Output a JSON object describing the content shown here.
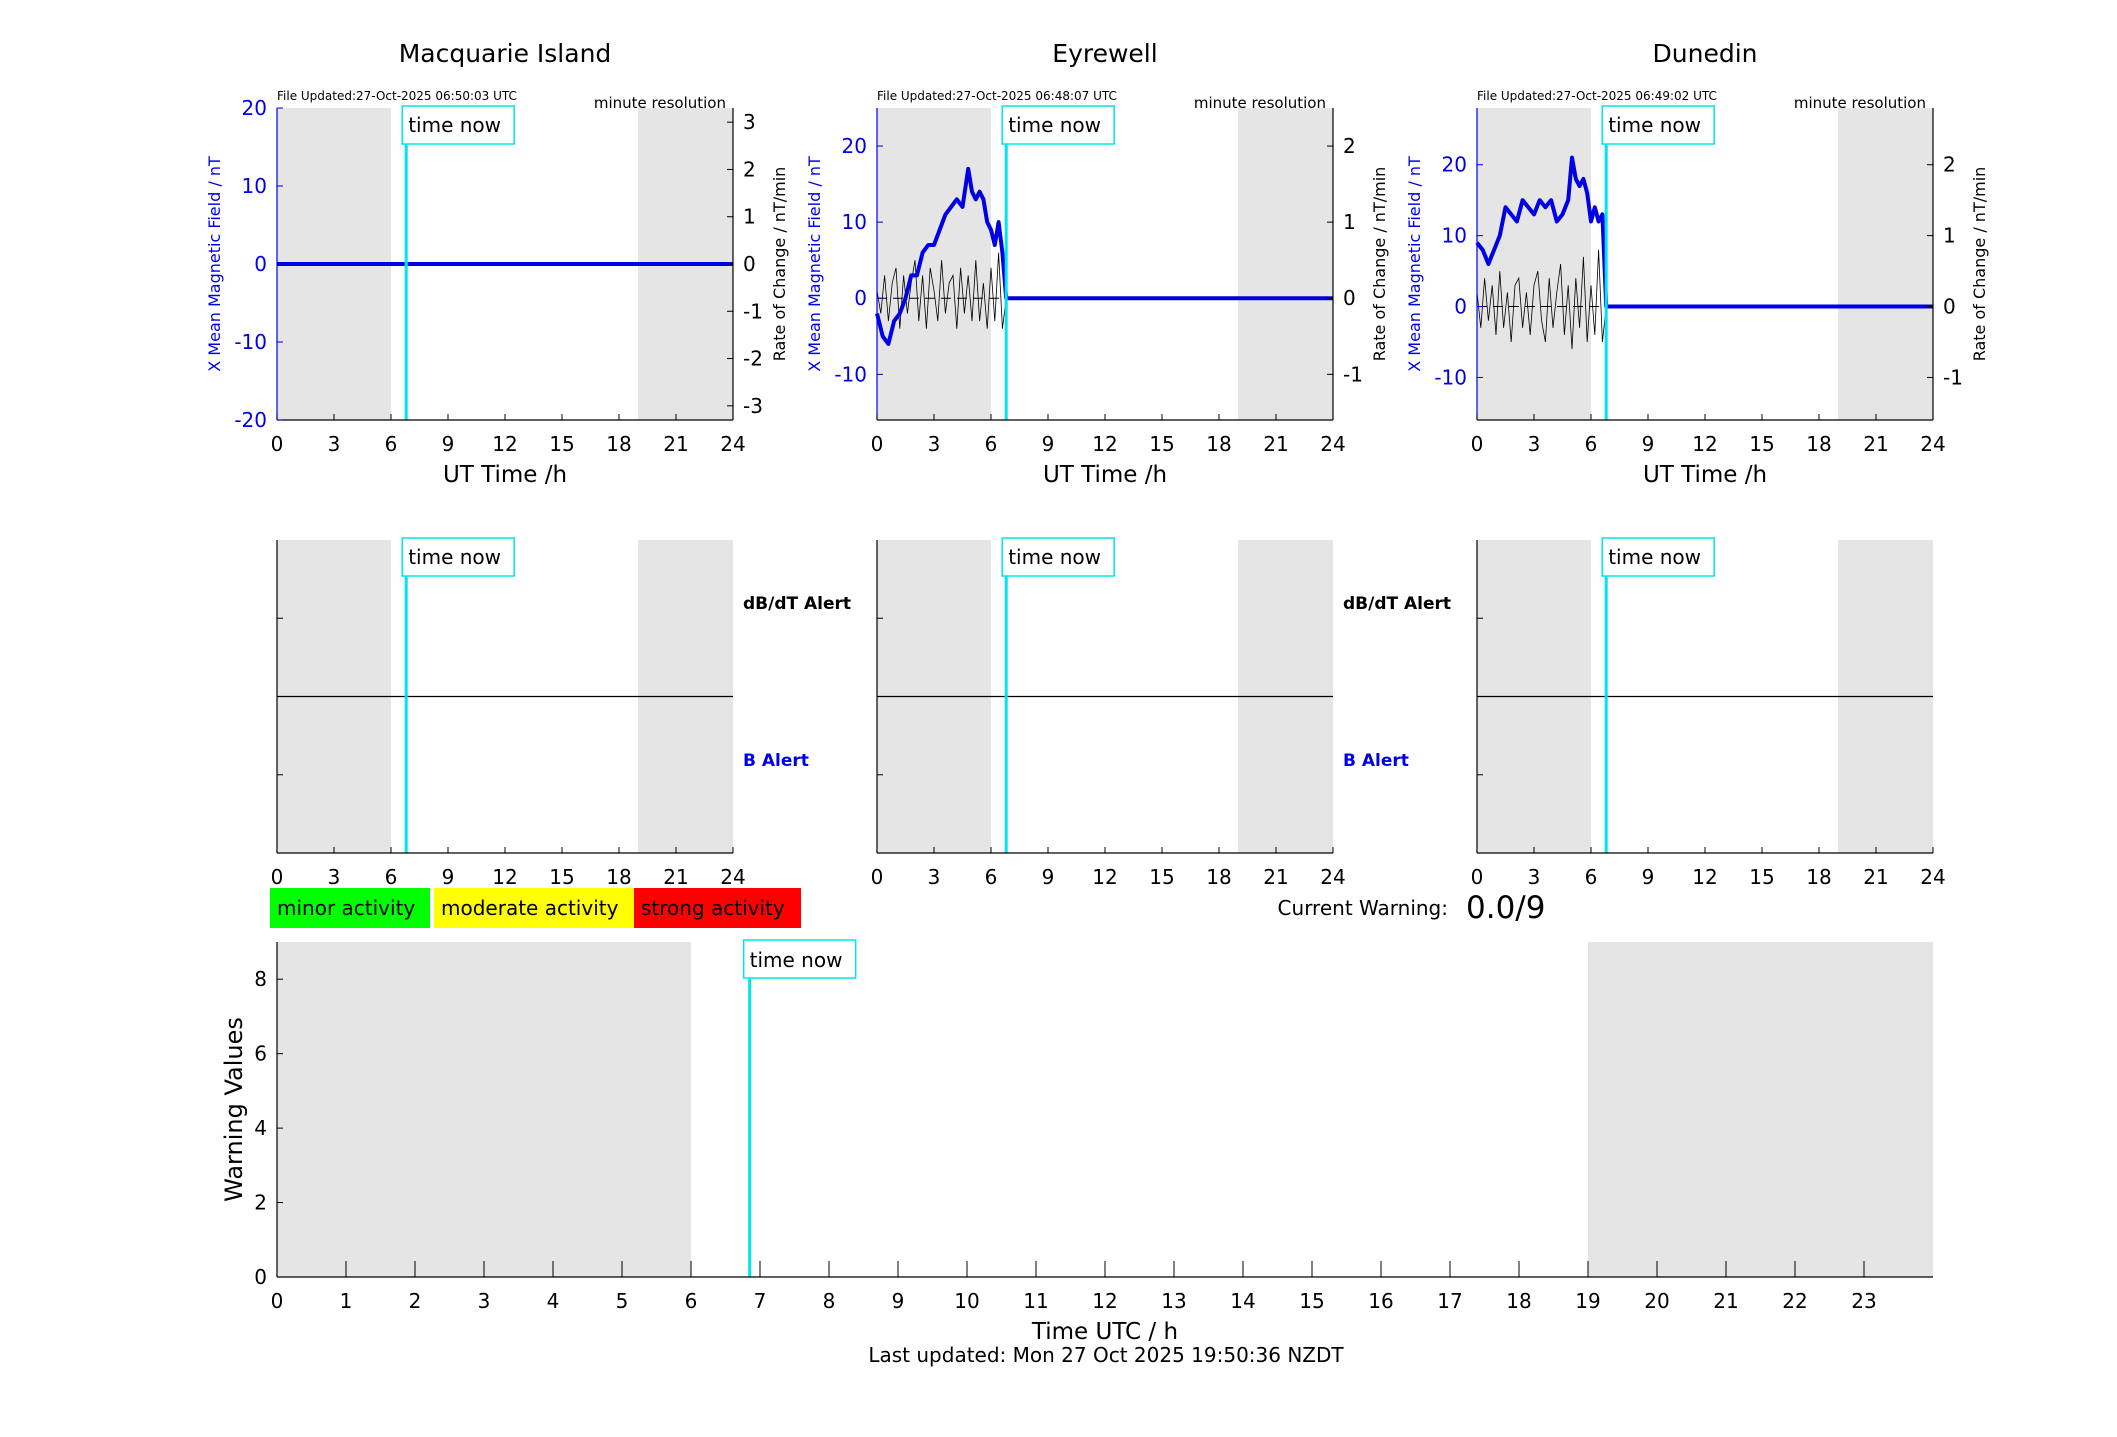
{
  "colors": {
    "mag_field": "#0000e6",
    "rate_of_change": "#000000",
    "night_shade": "#e5e5e5",
    "time_now": "#00e5ee",
    "dbdt_alert_label": "#000000",
    "b_alert_label": "#0000e6",
    "minor": "#00ff00",
    "moderate": "#ffff00",
    "strong": "#ff0000"
  },
  "common": {
    "time_now_label": "time now",
    "resolution_label": "minute resolution",
    "xlabel_station": "UT Time /h",
    "ylabel_left": "X Mean Magnetic Field / nT",
    "ylabel_right": "Rate of Change / nT/min",
    "x_ticks": [
      0,
      3,
      6,
      9,
      12,
      15,
      18,
      21,
      24
    ],
    "xlim": [
      0,
      24
    ],
    "time_now_hour": 6.8,
    "night_shading_hours": [
      [
        0,
        6
      ],
      [
        19,
        24
      ]
    ],
    "dbdt_alert_label": "dB/dT Alert",
    "b_alert_label": "B Alert"
  },
  "chart_data": [
    {
      "type": "line",
      "title": "Macquarie Island",
      "file_updated": "File Updated:27-Oct-2025 06:50:03 UTC",
      "ylim_left": [
        -20,
        20
      ],
      "yticks_left": [
        -20,
        -10,
        0,
        10,
        20
      ],
      "ylim_right": [
        -3.3,
        3.3
      ],
      "yticks_right": [
        -3,
        -2,
        -1,
        0,
        1,
        2,
        3
      ],
      "series": [
        {
          "x": [
            0,
            24
          ],
          "values": [
            0,
            0
          ]
        }
      ],
      "rate_series": [
        {
          "x": [
            0,
            24
          ],
          "values": [
            0,
            0
          ]
        }
      ]
    },
    {
      "type": "line",
      "title": "Eyrewell",
      "file_updated": "File Updated:27-Oct-2025 06:48:07 UTC",
      "ylim_left": [
        -16,
        25
      ],
      "yticks_left": [
        -10,
        0,
        10,
        20
      ],
      "ylim_right": [
        -1.6,
        2.5
      ],
      "yticks_right": [
        -1,
        0,
        1,
        2
      ],
      "series": [
        {
          "x": [
            0,
            0.3,
            0.6,
            0.9,
            1.2,
            1.5,
            1.8,
            2.1,
            2.4,
            2.7,
            3.0,
            3.3,
            3.6,
            3.9,
            4.2,
            4.5,
            4.8,
            5.0,
            5.2,
            5.4,
            5.6,
            5.8,
            6.0,
            6.2,
            6.4,
            6.6,
            6.8,
            24
          ],
          "values": [
            -2,
            -5,
            -6,
            -3,
            -2,
            0,
            3,
            3,
            6,
            7,
            7,
            9,
            11,
            12,
            13,
            12,
            17,
            14,
            13,
            14,
            13,
            10,
            9,
            7,
            10,
            6,
            0,
            0
          ]
        }
      ],
      "rate_series": [
        {
          "x": [
            0,
            0.2,
            0.4,
            0.6,
            0.8,
            1.0,
            1.2,
            1.4,
            1.6,
            1.8,
            2.0,
            2.2,
            2.4,
            2.6,
            2.8,
            3.0,
            3.2,
            3.4,
            3.6,
            3.8,
            4.0,
            4.2,
            4.4,
            4.6,
            4.8,
            5.0,
            5.2,
            5.4,
            5.6,
            5.8,
            6.0,
            6.2,
            6.4,
            6.6,
            6.8,
            24
          ],
          "values": [
            0.1,
            -0.2,
            0.3,
            -0.3,
            0.2,
            0.4,
            -0.4,
            0.3,
            -0.2,
            0.2,
            0.5,
            -0.3,
            0.3,
            -0.4,
            0.4,
            0.1,
            -0.3,
            0.5,
            -0.2,
            0.2,
            0.3,
            -0.4,
            0.4,
            -0.2,
            0.3,
            -0.3,
            0.5,
            -0.3,
            0.2,
            -0.4,
            0.4,
            -0.3,
            0.6,
            -0.4,
            0,
            0
          ]
        }
      ]
    },
    {
      "type": "line",
      "title": "Dunedin",
      "file_updated": "File Updated:27-Oct-2025 06:49:02 UTC",
      "ylim_left": [
        -16,
        28
      ],
      "yticks_left": [
        -10,
        0,
        10,
        20
      ],
      "ylim_right": [
        -1.6,
        2.8
      ],
      "yticks_right": [
        -1,
        0,
        1,
        2
      ],
      "series": [
        {
          "x": [
            0,
            0.3,
            0.6,
            0.9,
            1.2,
            1.5,
            1.8,
            2.1,
            2.4,
            2.7,
            3.0,
            3.3,
            3.6,
            3.9,
            4.2,
            4.5,
            4.8,
            5.0,
            5.2,
            5.4,
            5.6,
            5.8,
            6.0,
            6.2,
            6.4,
            6.6,
            6.8,
            24
          ],
          "values": [
            9,
            8,
            6,
            8,
            10,
            14,
            13,
            12,
            15,
            14,
            13,
            15,
            14,
            15,
            12,
            13,
            15,
            21,
            18,
            17,
            18,
            16,
            12,
            14,
            12,
            13,
            0,
            0
          ]
        }
      ],
      "rate_series": [
        {
          "x": [
            0,
            0.2,
            0.4,
            0.6,
            0.8,
            1.0,
            1.2,
            1.4,
            1.6,
            1.8,
            2.0,
            2.2,
            2.4,
            2.6,
            2.8,
            3.0,
            3.2,
            3.4,
            3.6,
            3.8,
            4.0,
            4.2,
            4.4,
            4.6,
            4.8,
            5.0,
            5.2,
            5.4,
            5.6,
            5.8,
            6.0,
            6.2,
            6.4,
            6.6,
            6.8,
            24
          ],
          "values": [
            0.2,
            -0.3,
            0.4,
            -0.2,
            0.3,
            -0.4,
            0.5,
            -0.3,
            0.2,
            -0.5,
            0.3,
            0.4,
            -0.3,
            0.2,
            -0.4,
            0.3,
            0.5,
            -0.2,
            -0.5,
            0.4,
            -0.3,
            0.2,
            0.6,
            -0.4,
            0.3,
            -0.6,
            0.4,
            -0.3,
            0.7,
            -0.5,
            0.3,
            -0.4,
            0.8,
            -0.5,
            0,
            0
          ]
        }
      ]
    },
    {
      "type": "bar",
      "xlabel": "Time UTC / h",
      "ylabel": "Warning Values",
      "xlim": [
        0,
        24
      ],
      "x_ticks": [
        0,
        1,
        2,
        3,
        4,
        5,
        6,
        7,
        8,
        9,
        10,
        11,
        12,
        13,
        14,
        15,
        16,
        17,
        18,
        19,
        20,
        21,
        22,
        23
      ],
      "ylim": [
        0,
        9
      ],
      "y_ticks": [
        0,
        2,
        4,
        6,
        8
      ],
      "night_shading_hours": [
        [
          0,
          6
        ],
        [
          19,
          24
        ]
      ],
      "time_now_hour": 6.85,
      "values": []
    }
  ],
  "legend": {
    "minor": "minor activity",
    "moderate": "moderate activity",
    "strong": "strong activity"
  },
  "warning": {
    "label": "Current Warning:",
    "value": "0.0/9"
  },
  "footer": {
    "last_updated": "Last updated: Mon 27 Oct 2025 19:50:36 NZDT"
  }
}
